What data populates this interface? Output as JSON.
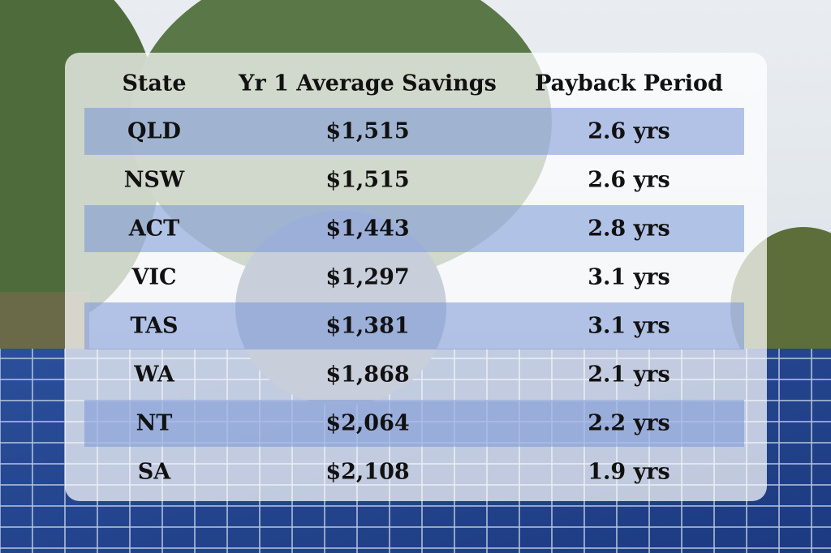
{
  "table": {
    "headers": [
      "State",
      "Yr 1 Average Savings",
      "Payback Period"
    ],
    "rows": [
      [
        "QLD",
        "$1,515",
        "2.6 yrs"
      ],
      [
        "NSW",
        "$1,515",
        "2.6 yrs"
      ],
      [
        "ACT",
        "$1,443",
        "2.8 yrs"
      ],
      [
        "VIC",
        "$1,297",
        "3.1 yrs"
      ],
      [
        "TAS",
        "$1,381",
        "3.1 yrs"
      ],
      [
        "WA",
        "$1,868",
        "2.1 yrs"
      ],
      [
        "NT",
        "$2,064",
        "2.2 yrs"
      ],
      [
        "SA",
        "$2,108",
        "1.9 yrs"
      ]
    ]
  }
}
